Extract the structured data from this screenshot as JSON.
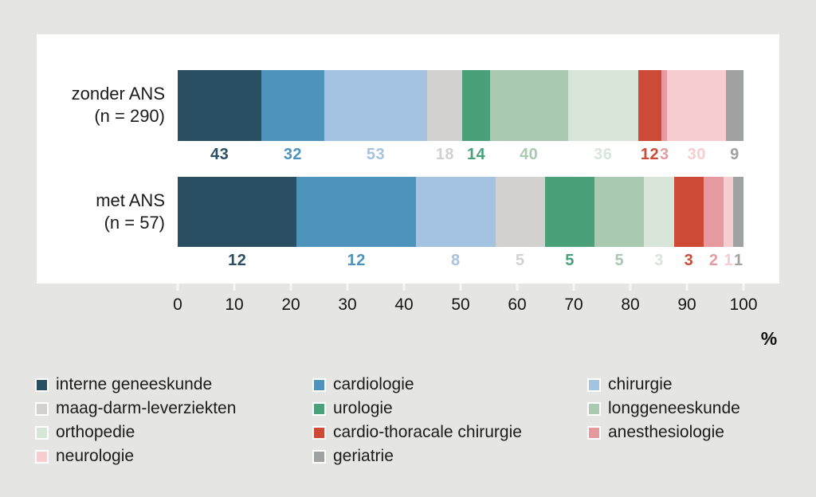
{
  "chart_data": {
    "type": "bar",
    "orientation": "horizontal",
    "stacked": true,
    "title": "",
    "x_axis_unit_label": "%",
    "xlim": [
      0,
      100
    ],
    "x_ticks": [
      0,
      10,
      20,
      30,
      40,
      50,
      60,
      70,
      80,
      90,
      100
    ],
    "grid": false,
    "legend_position": "bottom",
    "categories": [
      "interne geneeskunde",
      "cardiologie",
      "chirurgie",
      "maag-darm-leverziekten",
      "urologie",
      "longgeneeskunde",
      "orthopedie",
      "cardio-thoracale chirurgie",
      "anesthesiologie",
      "neurologie",
      "geriatrie"
    ],
    "colors": [
      "#2a4f63",
      "#4d93bc",
      "#a3c3e0",
      "#d2d1d0",
      "#4aa179",
      "#a9c9b1",
      "#d8e6da",
      "#cc4a36",
      "#e69aa0",
      "#f7cdcf",
      "#a0a1a1"
    ],
    "rows": [
      {
        "label_line1": "zonder ANS",
        "label_line2": "(n = 290)",
        "n": 290,
        "values": [
          43,
          32,
          53,
          18,
          14,
          40,
          36,
          12,
          3,
          30,
          9
        ]
      },
      {
        "label_line1": "met ANS",
        "label_line2": "(n = 57)",
        "n": 57,
        "values": [
          12,
          12,
          8,
          5,
          5,
          5,
          3,
          3,
          2,
          1,
          1
        ]
      }
    ]
  },
  "style": {
    "background": "#e5e5e4",
    "panel_background": "#ffffff",
    "tick_color": "#f6f6f4"
  }
}
